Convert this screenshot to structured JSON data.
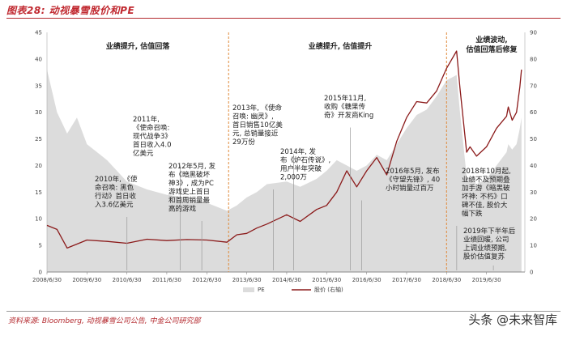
{
  "figure": {
    "title": "图表28:  动视暴雪股价和PE",
    "source": "资料来源: Bloomberg, 动视暴雪公司公告, 中金公司研究部",
    "watermark": "头条 @未来智库"
  },
  "chart_data": {
    "type": "line",
    "x_tick_labels": [
      "2008/6/30",
      "2009/6/30",
      "2010/6/30",
      "2011/6/30",
      "2012/6/30",
      "2013/6/30",
      "2014/6/30",
      "2015/6/30",
      "2016/6/30",
      "2017/6/30",
      "2018/6/30",
      "2019/6/30"
    ],
    "left_axis": {
      "ylim": [
        0,
        45
      ],
      "ticks": [
        0,
        5,
        10,
        15,
        20,
        25,
        30,
        35,
        40,
        45
      ],
      "label": ""
    },
    "right_axis": {
      "ylim": [
        0,
        90
      ],
      "ticks": [
        0,
        10,
        20,
        30,
        40,
        50,
        60,
        70,
        80,
        90
      ],
      "label": ""
    },
    "legend": [
      {
        "name": "PE",
        "kind": "area",
        "color": "#dcdcdc"
      },
      {
        "name": "股价 (右轴)",
        "kind": "line",
        "color": "#8b1a1a"
      }
    ],
    "series": [
      {
        "name": "股价 (右轴)",
        "axis": "right",
        "color": "#8b1a1a",
        "points": [
          [
            "2008-06-30",
            17.5
          ],
          [
            "2008-09-30",
            16.0
          ],
          [
            "2008-12-31",
            9.0
          ],
          [
            "2009-03-31",
            10.5
          ],
          [
            "2009-06-30",
            12.0
          ],
          [
            "2009-12-31",
            11.5
          ],
          [
            "2010-06-30",
            10.8
          ],
          [
            "2010-12-31",
            12.3
          ],
          [
            "2011-06-30",
            11.8
          ],
          [
            "2011-12-31",
            12.2
          ],
          [
            "2012-06-30",
            12.0
          ],
          [
            "2012-12-31",
            11.2
          ],
          [
            "2013-03-31",
            14.0
          ],
          [
            "2013-06-30",
            14.5
          ],
          [
            "2013-09-30",
            16.5
          ],
          [
            "2013-12-31",
            18.0
          ],
          [
            "2014-06-30",
            21.5
          ],
          [
            "2014-10-31",
            19.0
          ],
          [
            "2015-03-31",
            23.5
          ],
          [
            "2015-06-30",
            25.0
          ],
          [
            "2015-09-30",
            30.0
          ],
          [
            "2015-12-31",
            38.0
          ],
          [
            "2016-03-31",
            32.0
          ],
          [
            "2016-06-30",
            38.0
          ],
          [
            "2016-09-30",
            43.0
          ],
          [
            "2016-12-31",
            36.5
          ],
          [
            "2017-03-31",
            49.0
          ],
          [
            "2017-06-30",
            58.0
          ],
          [
            "2017-09-30",
            64.0
          ],
          [
            "2017-12-31",
            63.5
          ],
          [
            "2018-03-31",
            68.0
          ],
          [
            "2018-06-30",
            76.5
          ],
          [
            "2018-09-30",
            83.0
          ],
          [
            "2018-10-31",
            69.0
          ],
          [
            "2018-12-31",
            45.0
          ],
          [
            "2019-01-31",
            47.0
          ],
          [
            "2019-03-31",
            43.5
          ],
          [
            "2019-06-30",
            47.0
          ],
          [
            "2019-09-30",
            54.0
          ],
          [
            "2019-12-31",
            58.5
          ],
          [
            "2020-01-15",
            62.0
          ],
          [
            "2020-02-20",
            57.0
          ],
          [
            "2020-03-31",
            60.0
          ],
          [
            "2020-04-30",
            69.5
          ],
          [
            "2020-05-15",
            76.0
          ]
        ]
      },
      {
        "name": "PE",
        "axis": "left",
        "color": "#dcdcdc",
        "points": [
          [
            "2008-06-30",
            38.0
          ],
          [
            "2008-09-30",
            30.0
          ],
          [
            "2008-12-31",
            26.0
          ],
          [
            "2009-03-31",
            29.0
          ],
          [
            "2009-06-30",
            24.0
          ],
          [
            "2009-12-31",
            21.0
          ],
          [
            "2010-06-30",
            17.0
          ],
          [
            "2010-12-31",
            15.5
          ],
          [
            "2011-06-30",
            14.5
          ],
          [
            "2011-12-31",
            14.0
          ],
          [
            "2012-06-30",
            13.0
          ],
          [
            "2012-12-31",
            11.5
          ],
          [
            "2013-03-31",
            12.5
          ],
          [
            "2013-06-30",
            14.0
          ],
          [
            "2013-09-30",
            15.0
          ],
          [
            "2013-12-31",
            16.5
          ],
          [
            "2014-06-30",
            17.0
          ],
          [
            "2014-10-31",
            16.0
          ],
          [
            "2015-03-31",
            17.5
          ],
          [
            "2015-06-30",
            19.0
          ],
          [
            "2015-09-30",
            21.0
          ],
          [
            "2015-12-31",
            20.0
          ],
          [
            "2016-03-31",
            19.0
          ],
          [
            "2016-06-30",
            20.0
          ],
          [
            "2016-09-30",
            22.0
          ],
          [
            "2016-12-31",
            21.0
          ],
          [
            "2017-03-31",
            24.0
          ],
          [
            "2017-06-30",
            27.0
          ],
          [
            "2017-09-30",
            29.5
          ],
          [
            "2017-12-31",
            30.5
          ],
          [
            "2018-03-31",
            33.0
          ],
          [
            "2018-06-30",
            36.0
          ],
          [
            "2018-09-30",
            37.0
          ],
          [
            "2018-10-31",
            30.0
          ],
          [
            "2018-12-31",
            18.0
          ],
          [
            "2019-01-31",
            17.5
          ],
          [
            "2019-03-31",
            16.5
          ],
          [
            "2019-06-30",
            17.5
          ],
          [
            "2019-09-30",
            20.0
          ],
          [
            "2019-12-31",
            22.5
          ],
          [
            "2020-01-15",
            24.0
          ],
          [
            "2020-02-20",
            23.0
          ],
          [
            "2020-03-31",
            24.0
          ],
          [
            "2020-04-30",
            27.0
          ],
          [
            "2020-05-15",
            29.0
          ]
        ]
      }
    ],
    "phase_dividers": [
      "2013-01-15",
      "2018-06-30"
    ],
    "phases": [
      {
        "id": "p1",
        "text": [
          "业绩提升, 估值回落"
        ]
      },
      {
        "id": "p2",
        "text": [
          "业绩提升, 估值提升"
        ]
      },
      {
        "id": "p3",
        "text": [
          "业绩波动,",
          "估值回落后修复"
        ]
      }
    ],
    "annotations": [
      {
        "id": "a2010",
        "date": "2010-07-01",
        "text": [
          "2010年, 《使",
          "命召唤: 黑色",
          "行动》首日收",
          "入3.6亿美元"
        ]
      },
      {
        "id": "a2011",
        "date": "2011-11-01",
        "text": [
          "2011年,",
          "《使命召唤:",
          "现代战争3》",
          "首日收入4.0",
          "亿美元"
        ]
      },
      {
        "id": "a2012",
        "date": "2012-05-15",
        "text": [
          "2012年5月, 发",
          "布《暗黑破坏",
          "神3》, 成为PC",
          "游戏史上首日",
          "和首周销量最",
          "高的游戏"
        ]
      },
      {
        "id": "a2013",
        "date": "2014-09-01",
        "text": [
          "2013年, 《使命",
          "召唤: 幽灵》,",
          "首日销售10亿美",
          "元, 总销量接近",
          "29万份"
        ]
      },
      {
        "id": "a2014",
        "date": "2014-03-01",
        "text": [
          "2014年, 发",
          "布《炉石传说》,",
          "用户半年突破",
          "2,000万"
        ]
      },
      {
        "id": "a2015",
        "date": "2016-02-01",
        "text": [
          "2015年11月,",
          "收购《糖果传",
          "奇》开发商King"
        ]
      },
      {
        "id": "a2016",
        "date": "2016-05-15",
        "text": [
          "2016年5月, 发布",
          "《守望先锋》, 40",
          "小时销量过百万"
        ]
      },
      {
        "id": "a2018",
        "date": "2018-10-01",
        "text": [
          "2018年10月起,",
          "业绩不及预期叠",
          "加手游《暗黑破",
          "坏神: 不朽》口",
          "碑不佳, 股价大",
          "幅下跌"
        ]
      },
      {
        "id": "a2019",
        "date": "2019-09-01",
        "text": [
          "2019年下半年后",
          "业绩回暖, 公司",
          "上调业绩预期,",
          "股价估值复苏"
        ]
      }
    ]
  }
}
